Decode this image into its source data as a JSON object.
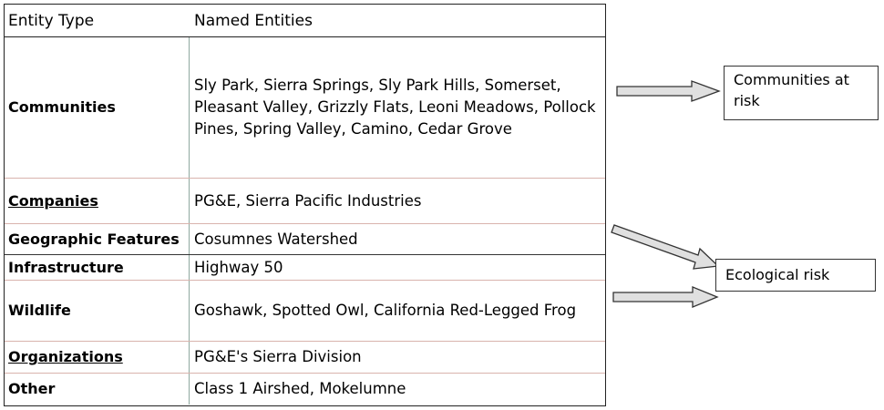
{
  "table": {
    "header": {
      "entity_type": "Entity Type",
      "named_entities": "Named Entities"
    },
    "rows": [
      {
        "type": "Communities",
        "entities": "Sly Park, Sierra Springs, Sly Park Hills, Somerset, Pleasant Valley, Grizzly Flats, Leoni Meadows, Pollock Pines, Spring Valley, Camino, Cedar Grove"
      },
      {
        "type": "Companies",
        "entities": "PG&E, Sierra Pacific Industries"
      },
      {
        "type": "Geographic Features",
        "entities": "Cosumnes Watershed"
      },
      {
        "type": "Infrastructure",
        "entities": "Highway 50"
      },
      {
        "type": "Wildlife",
        "entities": "Goshawk, Spotted Owl, California Red-Legged Frog"
      },
      {
        "type": "Organizations",
        "entities": "PG&E's Sierra Division"
      },
      {
        "type": "Other",
        "entities": "Class 1 Airshed, Mokelumne"
      }
    ]
  },
  "labels": {
    "communities_at_risk": "Communities at risk",
    "ecological_risk": "Ecological risk"
  }
}
